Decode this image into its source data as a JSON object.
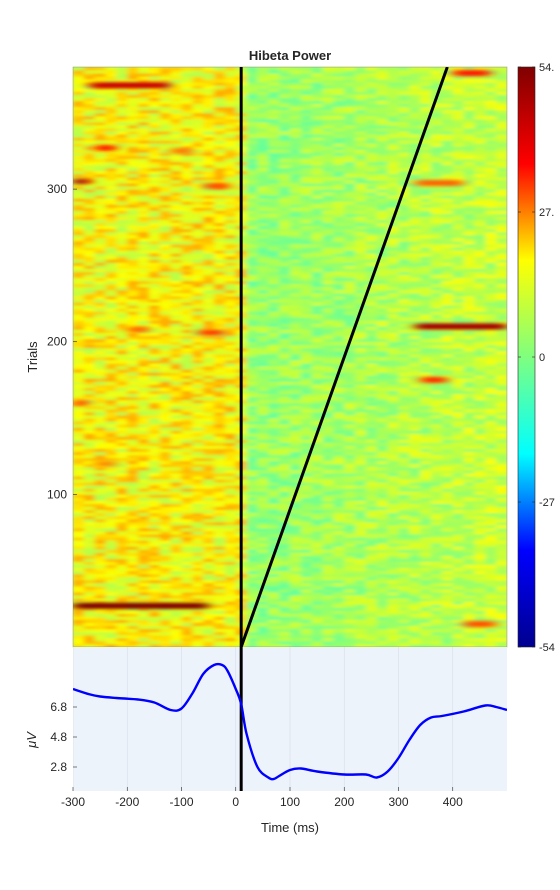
{
  "chart_data": [
    {
      "type": "heatmap",
      "title": "Hibeta Power",
      "ylabel": "Trials",
      "xlim": [
        -300,
        500
      ],
      "ylim": [
        1,
        380
      ],
      "yticks": [
        "100",
        "200",
        "300"
      ],
      "zero_line_x": 10,
      "rt_line": {
        "x_start": 10,
        "y_start": 1,
        "x_end": 390,
        "y_end": 380
      },
      "colorbar": {
        "ticks": [
          "54.",
          "27.",
          "0",
          "-27",
          "-54"
        ],
        "tick_values": [
          54,
          27,
          0,
          -27,
          -54
        ],
        "colormap": "jet",
        "colors": [
          "#00008f",
          "#0000ff",
          "#00ffff",
          "#7fff7f",
          "#ffff00",
          "#ff0000",
          "#800000"
        ]
      },
      "background_value": 14,
      "post_stimulus_value": 2,
      "hot_bands": [
        {
          "trial": 27,
          "x_from": -300,
          "x_to": -50,
          "value": 54
        },
        {
          "trial": 305,
          "x_from": -300,
          "x_to": -270,
          "value": 48
        },
        {
          "trial": 368,
          "x_from": -270,
          "x_to": -120,
          "value": 46
        },
        {
          "trial": 327,
          "x_from": -260,
          "x_to": -220,
          "value": 38
        },
        {
          "trial": 210,
          "x_from": 330,
          "x_to": 500,
          "value": 50
        },
        {
          "trial": 376,
          "x_from": 400,
          "x_to": 470,
          "value": 38
        },
        {
          "trial": 304,
          "x_from": 330,
          "x_to": 420,
          "value": 30
        },
        {
          "trial": 175,
          "x_from": 340,
          "x_to": 390,
          "value": 36
        },
        {
          "trial": 206,
          "x_from": -70,
          "x_to": -20,
          "value": 34
        },
        {
          "trial": 302,
          "x_from": -60,
          "x_to": -10,
          "value": 32
        },
        {
          "trial": 160,
          "x_from": -300,
          "x_to": -270,
          "value": 32
        },
        {
          "trial": 15,
          "x_from": 420,
          "x_to": 480,
          "value": 32
        },
        {
          "trial": 208,
          "x_from": -200,
          "x_to": -160,
          "value": 30
        },
        {
          "trial": 325,
          "x_from": -120,
          "x_to": -80,
          "value": 28
        },
        {
          "trial": 120,
          "x_from": -260,
          "x_to": -220,
          "value": 26
        }
      ]
    },
    {
      "type": "line",
      "xlabel": "Time (ms)",
      "ylabel": "μV",
      "xticks": [
        "-300",
        "-200",
        "-100",
        "0",
        "100",
        "200",
        "300",
        "400"
      ],
      "yticks": [
        "2.8",
        "4.8",
        "6.8"
      ],
      "xlim": [
        -300,
        500
      ],
      "ylim": [
        1.2,
        10.8
      ],
      "zero_line_x": 10,
      "series": [
        {
          "color": "#0000ff",
          "x": [
            -300,
            -270,
            -250,
            -220,
            -180,
            -150,
            -120,
            -100,
            -80,
            -60,
            -40,
            -25,
            -15,
            0,
            10,
            20,
            40,
            60,
            70,
            80,
            100,
            120,
            150,
            200,
            240,
            260,
            280,
            300,
            320,
            340,
            360,
            380,
            420,
            460,
            480,
            500
          ],
          "y": [
            8.0,
            7.65,
            7.5,
            7.4,
            7.3,
            7.1,
            6.6,
            6.7,
            7.7,
            9.0,
            9.6,
            9.6,
            9.2,
            8.0,
            7.0,
            5.0,
            2.8,
            2.1,
            2.0,
            2.2,
            2.6,
            2.7,
            2.5,
            2.3,
            2.3,
            2.1,
            2.5,
            3.4,
            4.6,
            5.6,
            6.1,
            6.2,
            6.5,
            6.9,
            6.8,
            6.6
          ]
        }
      ]
    }
  ]
}
